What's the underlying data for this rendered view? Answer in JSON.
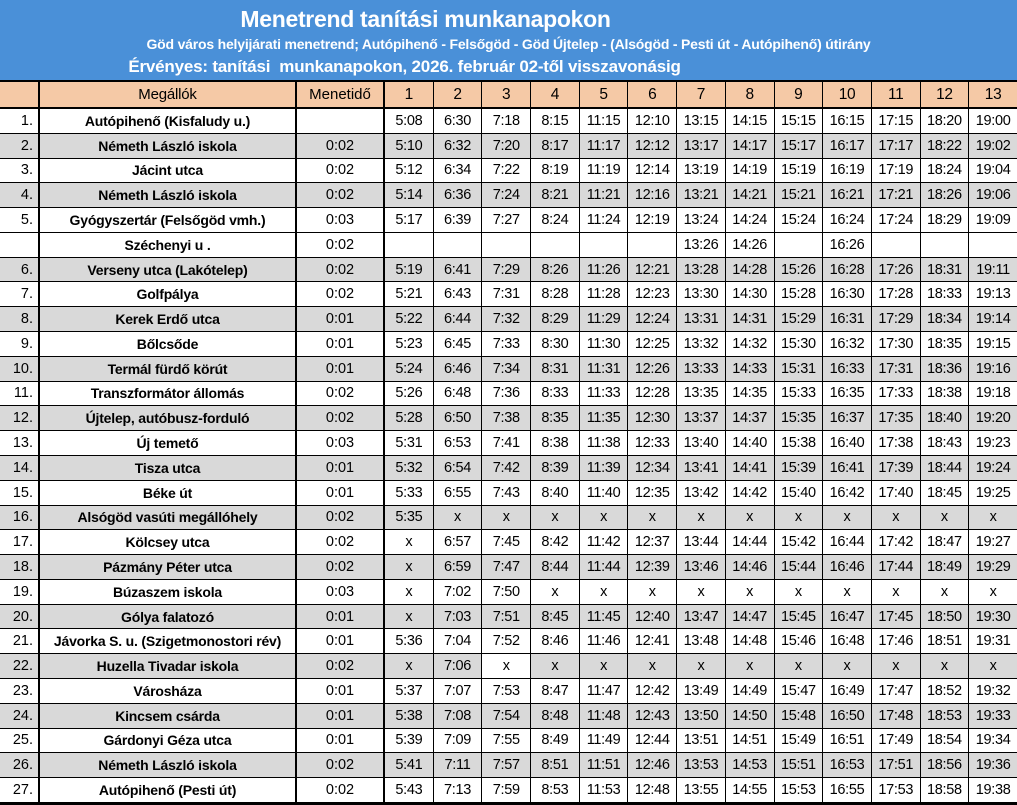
{
  "banner": {
    "title": "Menetrend tanítási munkanapokon",
    "subtitle": "Göd város helyijárati menetrend; Autópihenő - Felsőgöd - Göd Újtelep - (Alsógöd - Pesti út - Autópihenő) útirány",
    "validity": "Érvényes: tanítási  munkanapokon, 2026. február 02-től visszavonásig"
  },
  "colors": {
    "banner_bg": "#4a90d8",
    "banner_text": "#ffffff",
    "header_row_bg": "#f5c9a6",
    "stripe_bg": "#d9d9d9",
    "row_bg": "#ffffff",
    "border": "#000000"
  },
  "table": {
    "columns": [
      "",
      "Megállók",
      "Menetidő",
      "1",
      "2",
      "3",
      "4",
      "5",
      "6",
      "7",
      "8",
      "9",
      "10",
      "11",
      "12",
      "13"
    ],
    "rows": [
      {
        "num": "1.",
        "stop": "Autópihenő (Kisfaludy u.)",
        "duration": "",
        "shaded": false,
        "times": [
          "5:08",
          "6:30",
          "7:18",
          "8:15",
          "11:15",
          "12:10",
          "13:15",
          "14:15",
          "15:15",
          "16:15",
          "17:15",
          "18:20",
          "19:00"
        ]
      },
      {
        "num": "2.",
        "stop": "Németh László iskola",
        "duration": "0:02",
        "shaded": true,
        "times": [
          "5:10",
          "6:32",
          "7:20",
          "8:17",
          "11:17",
          "12:12",
          "13:17",
          "14:17",
          "15:17",
          "16:17",
          "17:17",
          "18:22",
          "19:02"
        ]
      },
      {
        "num": "3.",
        "stop": "Jácint utca",
        "duration": "0:02",
        "shaded": false,
        "times": [
          "5:12",
          "6:34",
          "7:22",
          "8:19",
          "11:19",
          "12:14",
          "13:19",
          "14:19",
          "15:19",
          "16:19",
          "17:19",
          "18:24",
          "19:04"
        ]
      },
      {
        "num": "4.",
        "stop": "Németh László iskola",
        "duration": "0:02",
        "shaded": true,
        "times": [
          "5:14",
          "6:36",
          "7:24",
          "8:21",
          "11:21",
          "12:16",
          "13:21",
          "14:21",
          "15:21",
          "16:21",
          "17:21",
          "18:26",
          "19:06"
        ]
      },
      {
        "num": "5.",
        "stop": "Gyógyszertár (Felsőgöd vmh.)",
        "duration": "0:03",
        "shaded": false,
        "times": [
          "5:17",
          "6:39",
          "7:27",
          "8:24",
          "11:24",
          "12:19",
          "13:24",
          "14:24",
          "15:24",
          "16:24",
          "17:24",
          "18:29",
          "19:09"
        ]
      },
      {
        "num": "",
        "stop": "Széchenyi u .",
        "duration": "0:02",
        "shaded": false,
        "times": [
          "",
          "",
          "",
          "",
          "",
          "",
          "13:26",
          "14:26",
          "",
          "16:26",
          "",
          "",
          ""
        ]
      },
      {
        "num": "6.",
        "stop": "Verseny utca (Lakótelep)",
        "duration": "0:02",
        "shaded": true,
        "times": [
          "5:19",
          "6:41",
          "7:29",
          "8:26",
          "11:26",
          "12:21",
          "13:28",
          "14:28",
          "15:26",
          "16:28",
          "17:26",
          "18:31",
          "19:11"
        ]
      },
      {
        "num": "7.",
        "stop": "Golfpálya",
        "duration": "0:02",
        "shaded": false,
        "times": [
          "5:21",
          "6:43",
          "7:31",
          "8:28",
          "11:28",
          "12:23",
          "13:30",
          "14:30",
          "15:28",
          "16:30",
          "17:28",
          "18:33",
          "19:13"
        ]
      },
      {
        "num": "8.",
        "stop": "Kerek Erdő utca",
        "duration": "0:01",
        "shaded": true,
        "times": [
          "5:22",
          "6:44",
          "7:32",
          "8:29",
          "11:29",
          "12:24",
          "13:31",
          "14:31",
          "15:29",
          "16:31",
          "17:29",
          "18:34",
          "19:14"
        ]
      },
      {
        "num": "9.",
        "stop": "Bőlcsőde",
        "duration": "0:01",
        "shaded": false,
        "times": [
          "5:23",
          "6:45",
          "7:33",
          "8:30",
          "11:30",
          "12:25",
          "13:32",
          "14:32",
          "15:30",
          "16:32",
          "17:30",
          "18:35",
          "19:15"
        ]
      },
      {
        "num": "10.",
        "stop": "Termál fürdő körút",
        "duration": "0:01",
        "shaded": true,
        "times": [
          "5:24",
          "6:46",
          "7:34",
          "8:31",
          "11:31",
          "12:26",
          "13:33",
          "14:33",
          "15:31",
          "16:33",
          "17:31",
          "18:36",
          "19:16"
        ]
      },
      {
        "num": "11.",
        "stop": "Transzformátor állomás",
        "duration": "0:02",
        "shaded": false,
        "times": [
          "5:26",
          "6:48",
          "7:36",
          "8:33",
          "11:33",
          "12:28",
          "13:35",
          "14:35",
          "15:33",
          "16:35",
          "17:33",
          "18:38",
          "19:18"
        ]
      },
      {
        "num": "12.",
        "stop": "Újtelep, autóbusz-forduló",
        "duration": "0:02",
        "shaded": true,
        "times": [
          "5:28",
          "6:50",
          "7:38",
          "8:35",
          "11:35",
          "12:30",
          "13:37",
          "14:37",
          "15:35",
          "16:37",
          "17:35",
          "18:40",
          "19:20"
        ]
      },
      {
        "num": "13.",
        "stop": "Új temető",
        "duration": "0:03",
        "shaded": false,
        "times": [
          "5:31",
          "6:53",
          "7:41",
          "8:38",
          "11:38",
          "12:33",
          "13:40",
          "14:40",
          "15:38",
          "16:40",
          "17:38",
          "18:43",
          "19:23"
        ]
      },
      {
        "num": "14.",
        "stop": "Tisza utca",
        "duration": "0:01",
        "shaded": true,
        "times": [
          "5:32",
          "6:54",
          "7:42",
          "8:39",
          "11:39",
          "12:34",
          "13:41",
          "14:41",
          "15:39",
          "16:41",
          "17:39",
          "18:44",
          "19:24"
        ]
      },
      {
        "num": "15.",
        "stop": "Béke út",
        "duration": "0:01",
        "shaded": false,
        "times": [
          "5:33",
          "6:55",
          "7:43",
          "8:40",
          "11:40",
          "12:35",
          "13:42",
          "14:42",
          "15:40",
          "16:42",
          "17:40",
          "18:45",
          "19:25"
        ]
      },
      {
        "num": "16.",
        "stop": "Alsógöd vasúti megállóhely",
        "duration": "0:02",
        "shaded": true,
        "times": [
          "5:35",
          "x",
          "x",
          "x",
          "x",
          "x",
          "x",
          "x",
          "x",
          "x",
          "x",
          "x",
          "x"
        ]
      },
      {
        "num": "17.",
        "stop": "Kölcsey utca",
        "duration": "0:02",
        "shaded": false,
        "times": [
          "x",
          "6:57",
          "7:45",
          "8:42",
          "11:42",
          "12:37",
          "13:44",
          "14:44",
          "15:42",
          "16:44",
          "17:42",
          "18:47",
          "19:27"
        ]
      },
      {
        "num": "18.",
        "stop": "Pázmány Péter utca",
        "duration": "0:02",
        "shaded": true,
        "times": [
          "x",
          "6:59",
          "7:47",
          "8:44",
          "11:44",
          "12:39",
          "13:46",
          "14:46",
          "15:44",
          "16:46",
          "17:44",
          "18:49",
          "19:29"
        ]
      },
      {
        "num": "19.",
        "stop": "Búzaszem iskola",
        "duration": "0:03",
        "shaded": false,
        "times": [
          "x",
          "7:02",
          "7:50",
          "x",
          "x",
          "x",
          "x",
          "x",
          "x",
          "x",
          "x",
          "x",
          "x"
        ]
      },
      {
        "num": "20.",
        "stop": "Gólya falatozó",
        "duration": "0:01",
        "shaded": true,
        "times": [
          "x",
          "7:03",
          "7:51",
          "8:45",
          "11:45",
          "12:40",
          "13:47",
          "14:47",
          "15:45",
          "16:47",
          "17:45",
          "18:50",
          "19:30"
        ]
      },
      {
        "num": "21.",
        "stop": "Jávorka S. u. (Szigetmonostori rév)",
        "duration": "0:01",
        "shaded": false,
        "times": [
          "5:36",
          "7:04",
          "7:52",
          "8:46",
          "11:46",
          "12:41",
          "13:48",
          "14:48",
          "15:46",
          "16:48",
          "17:46",
          "18:51",
          "19:31"
        ]
      },
      {
        "num": "22.",
        "stop": "Huzella Tivadar iskola",
        "duration": "0:02",
        "shaded": true,
        "white_time_cells": [
          2
        ],
        "times": [
          "x",
          "7:06",
          "x",
          "x",
          "x",
          "x",
          "x",
          "x",
          "x",
          "x",
          "x",
          "x",
          "x"
        ]
      },
      {
        "num": "23.",
        "stop": "Városháza",
        "duration": "0:01",
        "shaded": false,
        "times": [
          "5:37",
          "7:07",
          "7:53",
          "8:47",
          "11:47",
          "12:42",
          "13:49",
          "14:49",
          "15:47",
          "16:49",
          "17:47",
          "18:52",
          "19:32"
        ]
      },
      {
        "num": "24.",
        "stop": "Kincsem csárda",
        "duration": "0:01",
        "shaded": true,
        "times": [
          "5:38",
          "7:08",
          "7:54",
          "8:48",
          "11:48",
          "12:43",
          "13:50",
          "14:50",
          "15:48",
          "16:50",
          "17:48",
          "18:53",
          "19:33"
        ]
      },
      {
        "num": "25.",
        "stop": "Gárdonyi Géza utca",
        "duration": "0:01",
        "shaded": false,
        "times": [
          "5:39",
          "7:09",
          "7:55",
          "8:49",
          "11:49",
          "12:44",
          "13:51",
          "14:51",
          "15:49",
          "16:51",
          "17:49",
          "18:54",
          "19:34"
        ]
      },
      {
        "num": "26.",
        "stop": "Németh László iskola",
        "duration": "0:02",
        "shaded": true,
        "times": [
          "5:41",
          "7:11",
          "7:57",
          "8:51",
          "11:51",
          "12:46",
          "13:53",
          "14:53",
          "15:51",
          "16:53",
          "17:51",
          "18:56",
          "19:36"
        ]
      },
      {
        "num": "27.",
        "stop": "Autópihenő (Pesti út)",
        "duration": "0:02",
        "shaded": false,
        "times": [
          "5:43",
          "7:13",
          "7:59",
          "8:53",
          "11:53",
          "12:48",
          "13:55",
          "14:55",
          "15:53",
          "16:55",
          "17:53",
          "18:58",
          "19:38"
        ]
      }
    ]
  }
}
